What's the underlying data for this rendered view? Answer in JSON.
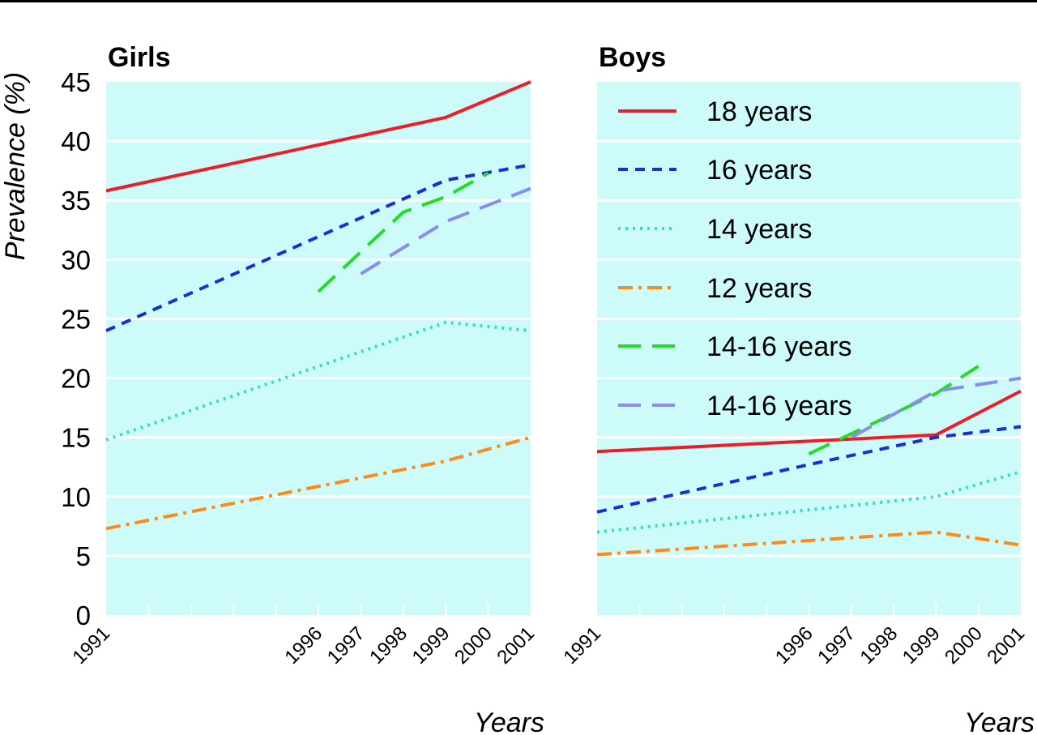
{
  "chart_data": {
    "type": "line",
    "ylabel": "Prevalence (%)",
    "xlabel": "Years",
    "ylim": [
      0,
      45
    ],
    "yticks": [
      "0",
      "5",
      "10",
      "15",
      "20",
      "25",
      "30",
      "35",
      "40",
      "45"
    ],
    "xticks": [
      "1991",
      "1996",
      "1997",
      "1998",
      "1999",
      "2000",
      "2001"
    ],
    "grid": "horizontal",
    "legend_placement": "Boys panel, upper",
    "colors": {
      "panel_background": "#ccfbf9",
      "18 years": "#ee1c25",
      "16 years": "#1a2ed8",
      "14 years": "#2ee3b8",
      "12 years": "#ff8a1a",
      "14-16 years (a)": "#22dd22",
      "14-16 years (b)": "#8a8cf0"
    },
    "legend": [
      {
        "key": "18y",
        "label": "18 years",
        "style": "solid"
      },
      {
        "key": "16y",
        "label": "16 years",
        "style": "short-dash"
      },
      {
        "key": "14y",
        "label": "14 years",
        "style": "dotted"
      },
      {
        "key": "12y",
        "label": "12 years",
        "style": "dash-dot"
      },
      {
        "key": "1416a",
        "label": "14-16 years",
        "style": "long-dash"
      },
      {
        "key": "1416b",
        "label": "14-16 years",
        "style": "long-dash"
      }
    ],
    "panels": [
      {
        "title": "Girls",
        "series": [
          {
            "key": "18y",
            "points": [
              [
                1991,
                35.8
              ],
              [
                1999,
                42
              ],
              [
                2001,
                45
              ]
            ]
          },
          {
            "key": "16y",
            "points": [
              [
                1991,
                24
              ],
              [
                1999,
                36.7
              ],
              [
                2001,
                38
              ]
            ]
          },
          {
            "key": "14y",
            "points": [
              [
                1991,
                14.8
              ],
              [
                1999,
                24.7
              ],
              [
                2001,
                24
              ]
            ]
          },
          {
            "key": "12y",
            "points": [
              [
                1991,
                7.3
              ],
              [
                1999,
                13
              ],
              [
                2001,
                15
              ]
            ]
          },
          {
            "key": "1416a",
            "points": [
              [
                1996,
                27.3
              ],
              [
                1998,
                34
              ],
              [
                1999,
                35.3
              ],
              [
                2000,
                37.3
              ]
            ]
          },
          {
            "key": "1416b",
            "points": [
              [
                1997,
                28.8
              ],
              [
                1999,
                33.2
              ],
              [
                2001,
                36
              ]
            ]
          }
        ]
      },
      {
        "title": "Boys",
        "series": [
          {
            "key": "18y",
            "points": [
              [
                1991,
                13.8
              ],
              [
                1999,
                15.2
              ],
              [
                2001,
                18.9
              ]
            ]
          },
          {
            "key": "16y",
            "points": [
              [
                1991,
                8.7
              ],
              [
                1996,
                12.7
              ],
              [
                1999,
                15
              ],
              [
                2001,
                15.9
              ]
            ]
          },
          {
            "key": "14y",
            "points": [
              [
                1991,
                7
              ],
              [
                1999,
                10
              ],
              [
                2001,
                12.1
              ]
            ]
          },
          {
            "key": "12y",
            "points": [
              [
                1991,
                5.1
              ],
              [
                1999,
                7
              ],
              [
                2001,
                5.9
              ]
            ]
          },
          {
            "key": "1416a",
            "points": [
              [
                1996,
                13.6
              ],
              [
                1999,
                18.7
              ],
              [
                2000,
                21
              ]
            ]
          },
          {
            "key": "1416b",
            "points": [
              [
                1997,
                15
              ],
              [
                1999,
                18.9
              ],
              [
                2001,
                20
              ]
            ]
          }
        ]
      }
    ]
  }
}
